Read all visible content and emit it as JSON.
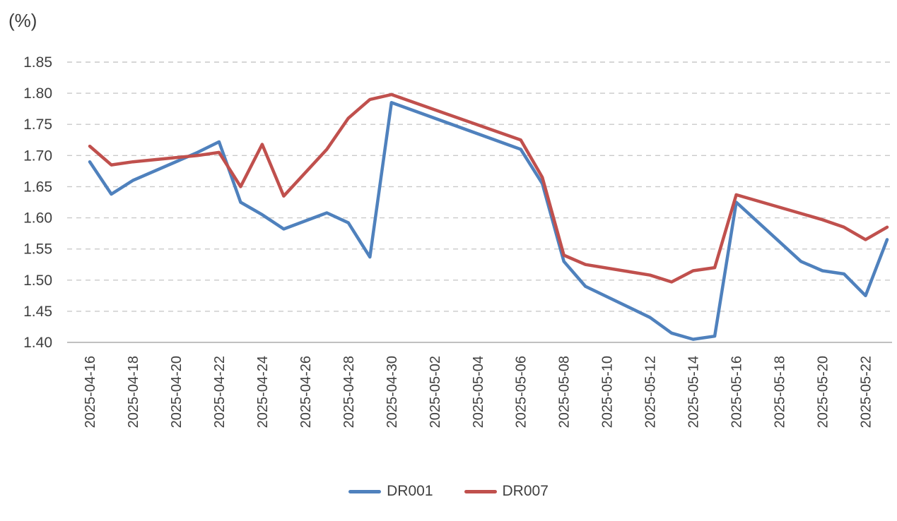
{
  "colors": {
    "tick_text": "#3f3f3f",
    "gridline": "#c9c9c9",
    "axis_line": "#b7b7b7",
    "background": "#ffffff"
  },
  "chart_data": {
    "type": "line",
    "title": "",
    "ylabel": "(%)",
    "xlabel": "",
    "ylim": [
      1.4,
      1.85
    ],
    "y_tick_step": 0.05,
    "grid": "dashed-horizontal",
    "legend_position": "bottom",
    "y_tick_labels": [
      "1.40",
      "1.45",
      "1.50",
      "1.55",
      "1.60",
      "1.65",
      "1.70",
      "1.75",
      "1.80",
      "1.85"
    ],
    "x_tick_labels": [
      "2025-04-16",
      "2025-04-18",
      "2025-04-20",
      "2025-04-22",
      "2025-04-24",
      "2025-04-26",
      "2025-04-28",
      "2025-04-30",
      "2025-05-02",
      "2025-05-04",
      "2025-05-06",
      "2025-05-08",
      "2025-05-10",
      "2025-05-12",
      "2025-05-14",
      "2025-05-16",
      "2025-05-18",
      "2025-05-20",
      "2025-05-22"
    ],
    "x": [
      "2025-04-16",
      "2025-04-17",
      "2025-04-18",
      "2025-04-21",
      "2025-04-22",
      "2025-04-23",
      "2025-04-24",
      "2025-04-25",
      "2025-04-27",
      "2025-04-28",
      "2025-04-29",
      "2025-04-30",
      "2025-05-06",
      "2025-05-07",
      "2025-05-08",
      "2025-05-09",
      "2025-05-12",
      "2025-05-13",
      "2025-05-14",
      "2025-05-15",
      "2025-05-16",
      "2025-05-19",
      "2025-05-20",
      "2025-05-21",
      "2025-05-22",
      "2025-05-23"
    ],
    "series": [
      {
        "name": "DR001",
        "color": "#4F81BD",
        "values": [
          1.69,
          1.638,
          1.66,
          1.705,
          1.722,
          1.625,
          1.605,
          1.582,
          1.608,
          1.592,
          1.537,
          1.785,
          1.71,
          1.655,
          1.53,
          1.49,
          1.44,
          1.415,
          1.405,
          1.41,
          1.625,
          1.53,
          1.515,
          1.51,
          1.475,
          1.565
        ]
      },
      {
        "name": "DR007",
        "color": "#C0504D",
        "values": [
          1.715,
          1.685,
          1.69,
          1.7,
          1.705,
          1.65,
          1.718,
          1.635,
          1.71,
          1.76,
          1.79,
          1.798,
          1.725,
          1.665,
          1.54,
          1.525,
          1.508,
          1.497,
          1.515,
          1.52,
          1.637,
          1.607,
          1.597,
          1.585,
          1.565,
          1.585
        ]
      }
    ]
  }
}
